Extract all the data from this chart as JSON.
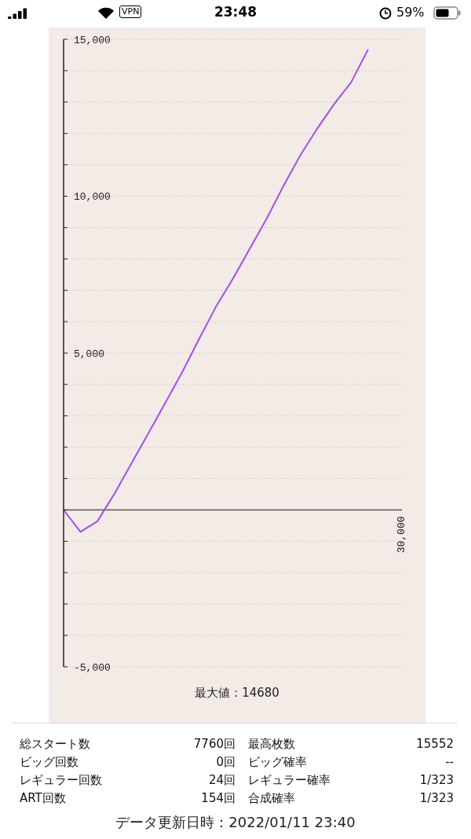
{
  "chart_data": {
    "type": "line",
    "categories": [
      null,
      null,
      null,
      null,
      null,
      null,
      null,
      null,
      null,
      null,
      null,
      null,
      null,
      null,
      null,
      null,
      null,
      null,
      null,
      null,
      null
    ],
    "values": [
      0,
      -700,
      -360,
      510,
      1470,
      2430,
      3400,
      4380,
      5440,
      6470,
      7360,
      8320,
      9280,
      10330,
      11310,
      12160,
      12940,
      13630,
      14680,
      null,
      null
    ],
    "color": "#a050f0",
    "ylim": [
      -5000,
      15000
    ],
    "yticks": [
      {
        "value": -5000,
        "label": "-5,000"
      },
      {
        "value": -4000,
        "label": null
      },
      {
        "value": -3000,
        "label": null
      },
      {
        "value": -2000,
        "label": null
      },
      {
        "value": -1000,
        "label": null
      },
      {
        "value": 0,
        "label": null
      },
      {
        "value": 1000,
        "label": null
      },
      {
        "value": 2000,
        "label": null
      },
      {
        "value": 3000,
        "label": null
      },
      {
        "value": 4000,
        "label": null
      },
      {
        "value": 5000,
        "label": "5,000"
      },
      {
        "value": 6000,
        "label": null
      },
      {
        "value": 7000,
        "label": null
      },
      {
        "value": 8000,
        "label": null
      },
      {
        "value": 9000,
        "label": null
      },
      {
        "value": 10000,
        "label": "10,000"
      },
      {
        "value": 11000,
        "label": null
      },
      {
        "value": 12000,
        "label": null
      },
      {
        "value": 13000,
        "label": null
      },
      {
        "value": 14000,
        "label": null
      },
      {
        "value": 15000,
        "label": "15,000"
      }
    ],
    "grid": "y",
    "ref_lines": [
      {
        "axis": "y",
        "value": 0,
        "color": "#555555"
      }
    ],
    "annotations": [
      "23:48",
      "VPN",
      "59%",
      "最大値：14680",
      "総スタート数",
      "7760回",
      "最高枚数",
      "15552",
      "ビッグ回数",
      "0回",
      "ビッグ確率",
      "--",
      "レギュラー回数",
      "24回",
      "レギュラー確率",
      "1/323",
      "ART回数",
      "154回",
      "合成確率",
      "1/323",
      "データ更新日時：2022/01/11 23:40",
      "30,000"
    ]
  }
}
